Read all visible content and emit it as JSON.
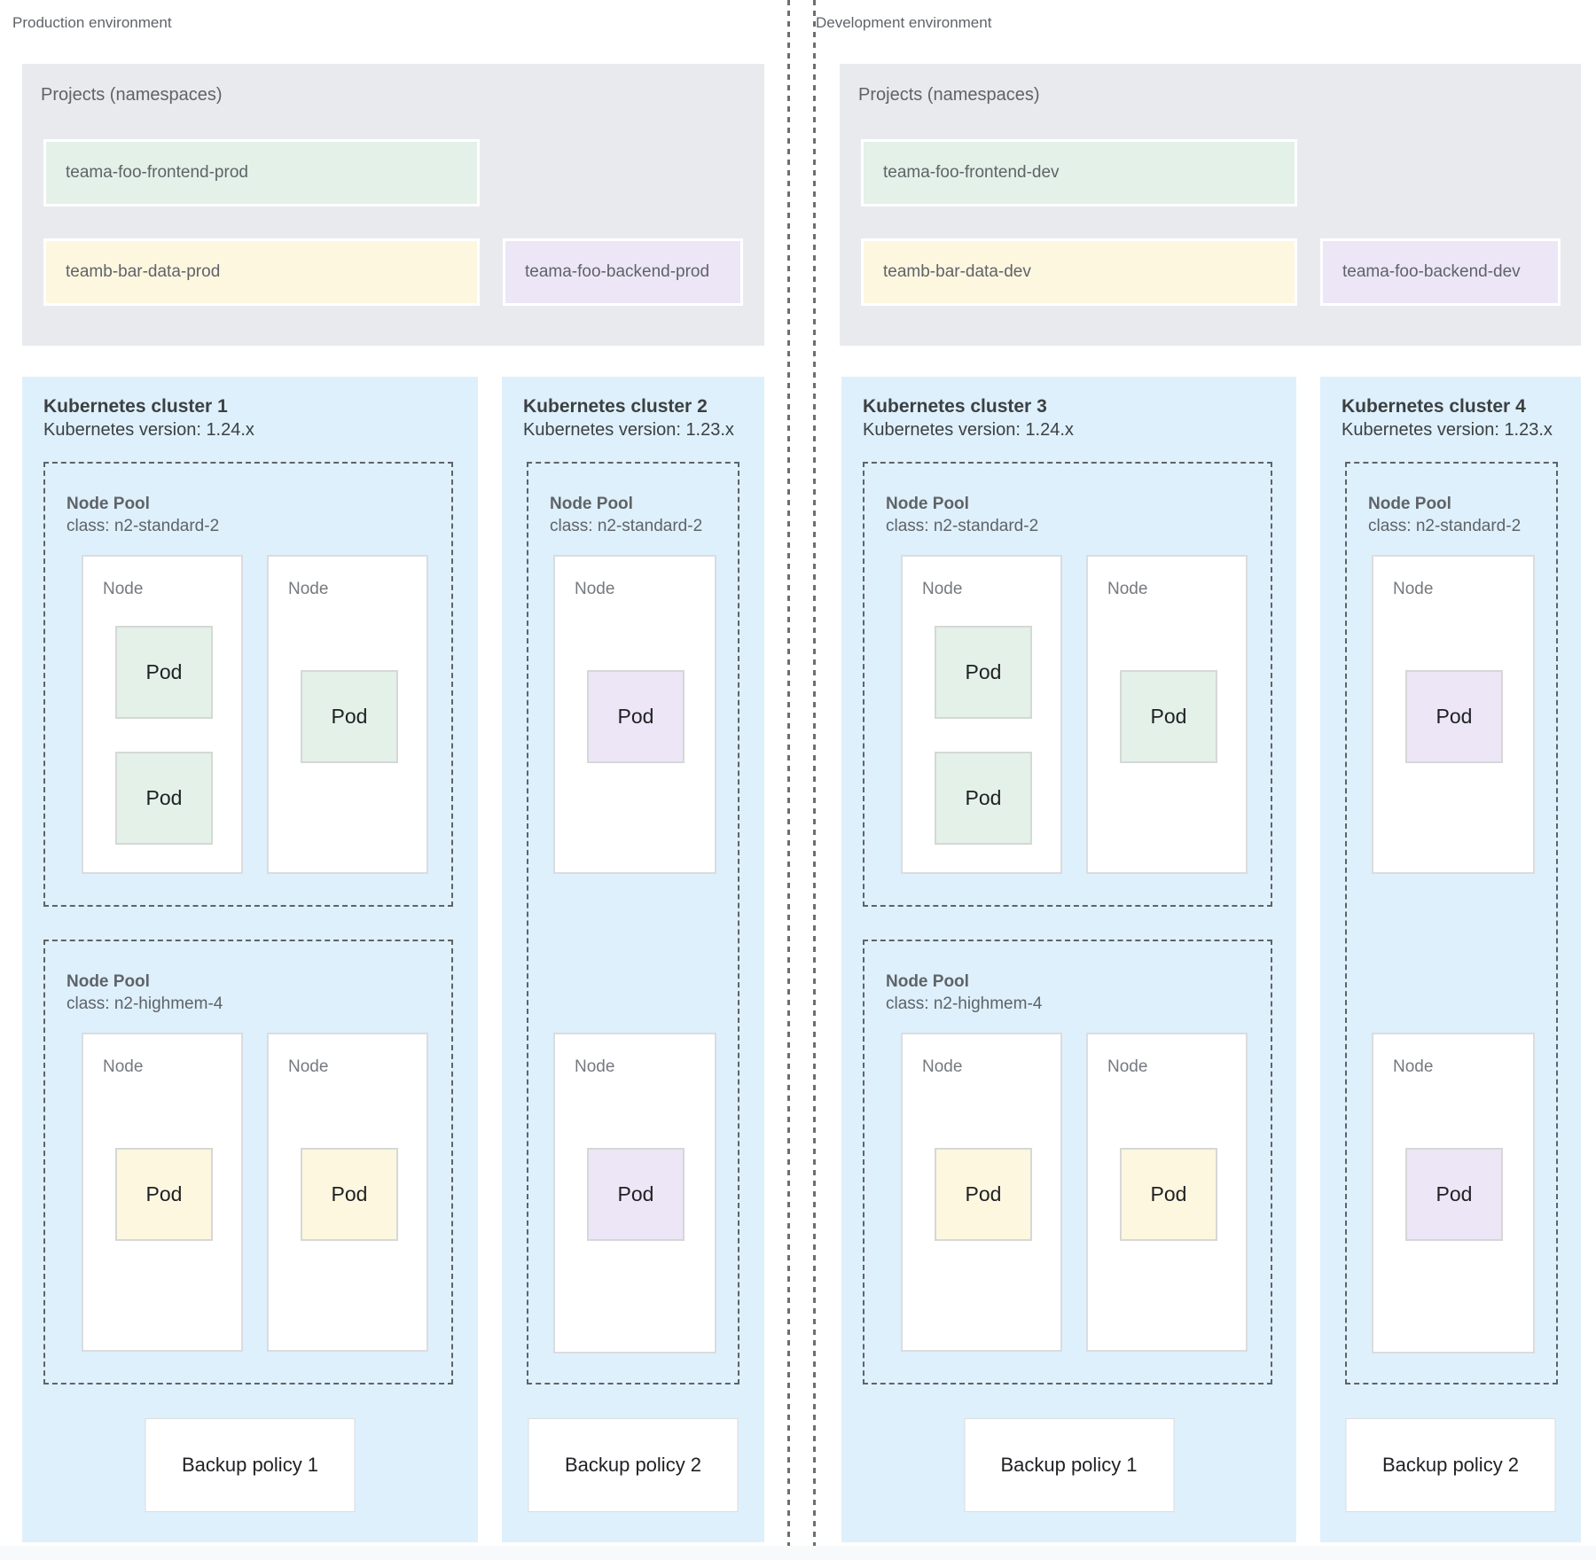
{
  "palette": {
    "green": "#E3F1E8",
    "yellow": "#FEF7E0",
    "purple": "#EDE6F6",
    "cluster_blue": "#DEF0FB",
    "panel_gray": "#E8EAED"
  },
  "environments": [
    {
      "label": "Production environment",
      "projects": {
        "title": "Projects (namespaces)",
        "namespaces": [
          {
            "name": "teama-foo-frontend-prod",
            "color": "green"
          },
          {
            "name": "teamb-bar-data-prod",
            "color": "yellow"
          },
          {
            "name": "teama-foo-backend-prod",
            "color": "purple"
          }
        ]
      },
      "clusters": [
        {
          "name": "Kubernetes cluster 1",
          "version": "Kubernetes version: 1.24.x",
          "pools": [
            {
              "label": "Node Pool",
              "machine_class": "class: n2-standard-2",
              "nodes": [
                {
                  "label": "Node",
                  "pods": [
                    {
                      "label": "Pod",
                      "color": "green"
                    },
                    {
                      "label": "Pod",
                      "color": "green"
                    }
                  ]
                },
                {
                  "label": "Node",
                  "pods": [
                    {
                      "label": "Pod",
                      "color": "green"
                    }
                  ]
                }
              ]
            },
            {
              "label": "Node Pool",
              "machine_class": "class: n2-highmem-4",
              "nodes": [
                {
                  "label": "Node",
                  "pods": [
                    {
                      "label": "Pod",
                      "color": "yellow"
                    }
                  ]
                },
                {
                  "label": "Node",
                  "pods": [
                    {
                      "label": "Pod",
                      "color": "yellow"
                    }
                  ]
                }
              ]
            }
          ],
          "backup_policy": "Backup policy 1"
        },
        {
          "name": "Kubernetes cluster 2",
          "version": "Kubernetes version: 1.23.x",
          "pools": [
            {
              "label": "Node Pool",
              "machine_class": "class: n2-standard-2",
              "nodes": [
                {
                  "label": "Node",
                  "pods": [
                    {
                      "label": "Pod",
                      "color": "purple"
                    }
                  ]
                },
                {
                  "label": "Node",
                  "pods": [
                    {
                      "label": "Pod",
                      "color": "purple"
                    }
                  ]
                }
              ]
            }
          ],
          "backup_policy": "Backup policy 2"
        }
      ]
    },
    {
      "label": "Development environment",
      "projects": {
        "title": "Projects (namespaces)",
        "namespaces": [
          {
            "name": "teama-foo-frontend-dev",
            "color": "green"
          },
          {
            "name": "teamb-bar-data-dev",
            "color": "yellow"
          },
          {
            "name": "teama-foo-backend-dev",
            "color": "purple"
          }
        ]
      },
      "clusters": [
        {
          "name": "Kubernetes cluster 3",
          "version": "Kubernetes version: 1.24.x",
          "pools": [
            {
              "label": "Node Pool",
              "machine_class": "class: n2-standard-2",
              "nodes": [
                {
                  "label": "Node",
                  "pods": [
                    {
                      "label": "Pod",
                      "color": "green"
                    },
                    {
                      "label": "Pod",
                      "color": "green"
                    }
                  ]
                },
                {
                  "label": "Node",
                  "pods": [
                    {
                      "label": "Pod",
                      "color": "green"
                    }
                  ]
                }
              ]
            },
            {
              "label": "Node Pool",
              "machine_class": "class: n2-highmem-4",
              "nodes": [
                {
                  "label": "Node",
                  "pods": [
                    {
                      "label": "Pod",
                      "color": "yellow"
                    }
                  ]
                },
                {
                  "label": "Node",
                  "pods": [
                    {
                      "label": "Pod",
                      "color": "yellow"
                    }
                  ]
                }
              ]
            }
          ],
          "backup_policy": "Backup policy 1"
        },
        {
          "name": "Kubernetes cluster 4",
          "version": "Kubernetes version: 1.23.x",
          "pools": [
            {
              "label": "Node Pool",
              "machine_class": "class: n2-standard-2",
              "nodes": [
                {
                  "label": "Node",
                  "pods": [
                    {
                      "label": "Pod",
                      "color": "purple"
                    }
                  ]
                },
                {
                  "label": "Node",
                  "pods": [
                    {
                      "label": "Pod",
                      "color": "purple"
                    }
                  ]
                }
              ]
            }
          ],
          "backup_policy": "Backup policy 2"
        }
      ]
    }
  ]
}
